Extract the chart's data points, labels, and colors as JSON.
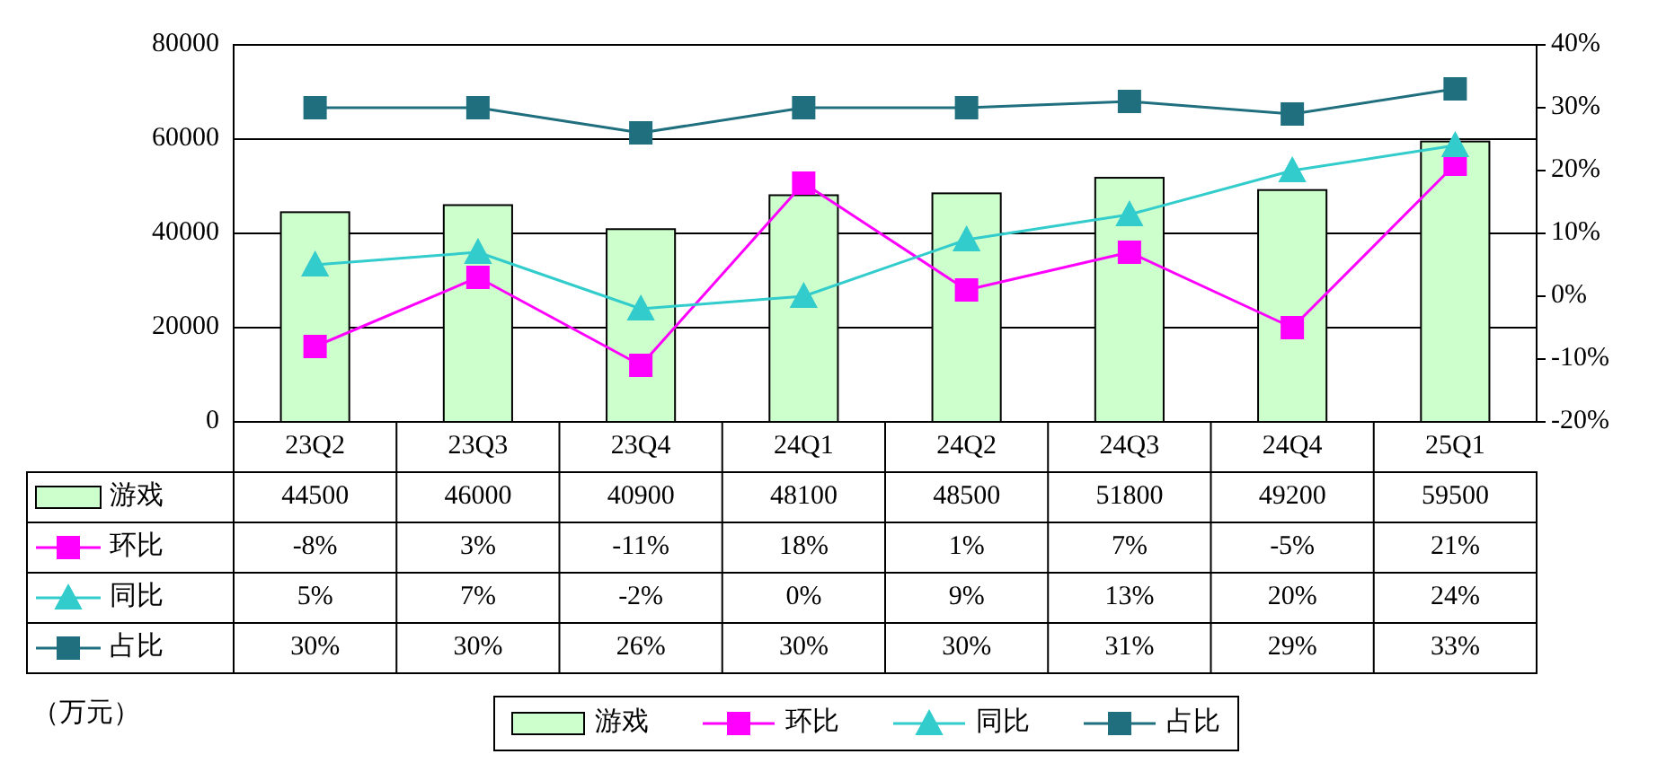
{
  "chart_data": {
    "type": "bar",
    "categories": [
      "23Q2",
      "23Q3",
      "23Q4",
      "24Q1",
      "24Q2",
      "24Q3",
      "24Q4",
      "25Q1"
    ],
    "series": [
      {
        "name": "游戏",
        "color": "#ccffcc",
        "values": [
          44500,
          46000,
          40900,
          48100,
          48500,
          51800,
          49200,
          59500
        ],
        "value_labels": [
          "44500",
          "46000",
          "40900",
          "48100",
          "48500",
          "51800",
          "49200",
          "59500"
        ]
      },
      {
        "name": "环比",
        "type": "line",
        "axis": "y2",
        "marker": "square",
        "color": "#ff00ff",
        "values": [
          -8,
          3,
          -11,
          18,
          1,
          7,
          -5,
          21
        ],
        "value_labels": [
          "-8%",
          "3%",
          "-11%",
          "18%",
          "1%",
          "7%",
          "-5%",
          "21%"
        ]
      },
      {
        "name": "同比",
        "type": "line",
        "axis": "y2",
        "marker": "triangle",
        "color": "#33cccc",
        "values": [
          5,
          7,
          -2,
          0,
          9,
          13,
          20,
          24
        ],
        "value_labels": [
          "5%",
          "7%",
          "-2%",
          "0%",
          "9%",
          "13%",
          "20%",
          "24%"
        ]
      },
      {
        "name": "占比",
        "type": "line",
        "axis": "y2",
        "marker": "square",
        "color": "#1f6f7f",
        "values": [
          30,
          30,
          26,
          30,
          30,
          31,
          29,
          33
        ],
        "value_labels": [
          "30%",
          "30%",
          "26%",
          "30%",
          "30%",
          "31%",
          "29%",
          "33%"
        ]
      }
    ],
    "ylim": [
      0,
      80000
    ],
    "yticks": [
      0,
      20000,
      40000,
      60000,
      80000
    ],
    "y2lim": [
      -20,
      40
    ],
    "y2ticks": [
      {
        "value": -20,
        "label": "-20%"
      },
      {
        "value": -10,
        "label": "-10%"
      },
      {
        "value": 0,
        "label": "0%"
      },
      {
        "value": 10,
        "label": "10%"
      },
      {
        "value": 20,
        "label": "20%"
      },
      {
        "value": 30,
        "label": "30%"
      },
      {
        "value": 40,
        "label": "40%"
      }
    ],
    "grid": "y",
    "legend": "bottom",
    "annotations": [
      "（万元）"
    ]
  }
}
